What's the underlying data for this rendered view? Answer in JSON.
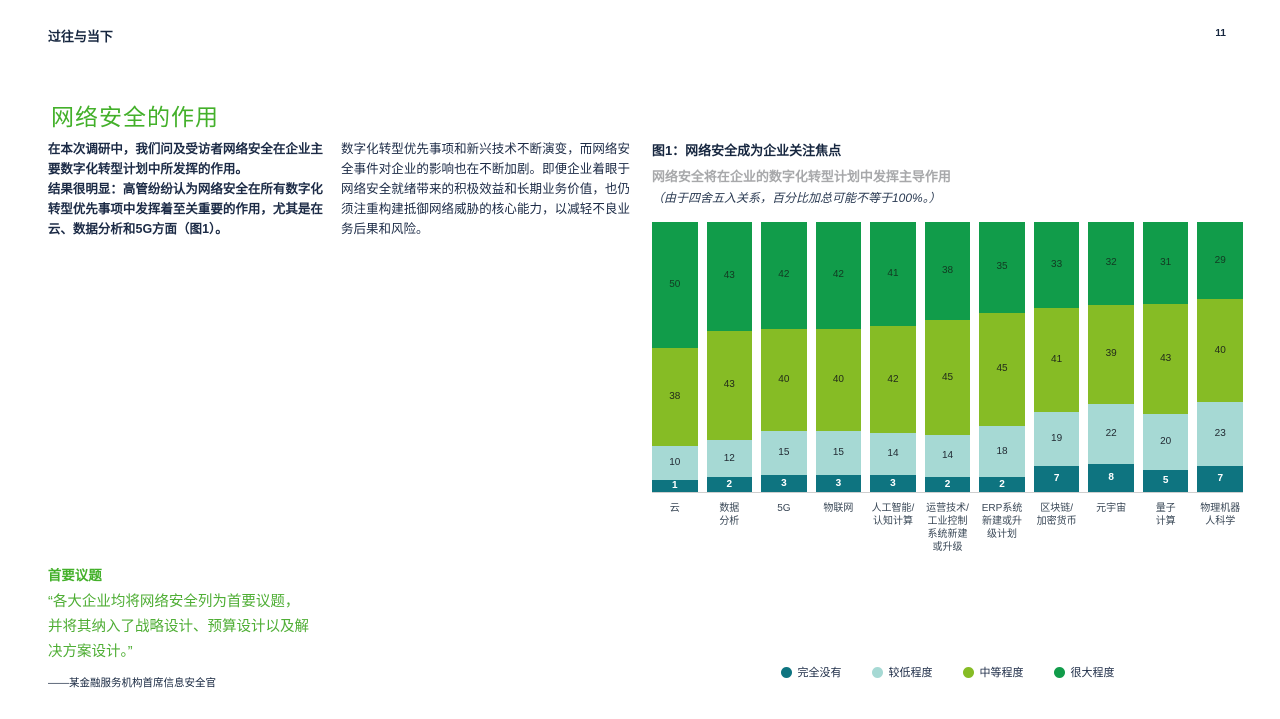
{
  "page": {
    "header": "过往与当下",
    "page_number": "11"
  },
  "article": {
    "title": "网络安全的作用",
    "col1_p1": "在本次调研中，我们问及受访者网络安全在企业主要数字化转型计划中所发挥的作用。",
    "col1_p2": "结果很明显：高管纷纷认为网络安全在所有数字化转型优先事项中发挥着至关重要的作用，尤其是在云、数据分析和5G方面（图1）。",
    "col2_p1": "数字化转型优先事项和新兴技术不断演变，而网络安全事件对企业的影响也在不断加剧。即便企业着眼于网络安全就绪带来的积极效益和长期业务价值，也仍须注重构建抵御网络威胁的核心能力，以减轻不良业务后果和风险。"
  },
  "figure": {
    "title": "图1：网络安全成为企业关注焦点",
    "subtitle": "网络安全将在企业的数字化转型计划中发挥主导作用",
    "note": "（由于四舍五入关系，百分比加总可能不等于100%。）"
  },
  "chart_data": {
    "type": "bar",
    "stacked": true,
    "units": "percent",
    "ylim": [
      0,
      100
    ],
    "grid": false,
    "legend_position": "bottom",
    "title": "图1：网络安全成为企业关注焦点",
    "subtitle": "网络安全将在企业的数字化转型计划中发挥主导作用",
    "categories": [
      "云",
      "数据分析",
      "5G",
      "物联网",
      "人工智能/认知计算",
      "运营技术/工业控制系统新建或升级",
      "ERP系统新建或升级计划",
      "区块链/加密货币",
      "元宇宙",
      "量子计算",
      "物理机器人科学"
    ],
    "display_labels": [
      "云",
      "数据\n分析",
      "5G",
      "物联网",
      "人工智能/\n认知计算",
      "运营技术/\n工业控制\n系统新建\n或升级",
      "ERP系统\n新建或升\n级计划",
      "区块链/\n加密货币",
      "元宇宙",
      "量子\n计算",
      "物理机器\n人科学"
    ],
    "series": [
      {
        "name": "完全没有",
        "color": "#0e7480",
        "label_color": "#ffffff",
        "values": [
          1,
          2,
          3,
          3,
          3,
          2,
          2,
          7,
          8,
          5,
          7
        ]
      },
      {
        "name": "较低程度",
        "color": "#a6d9d4",
        "label_color": "#222b33",
        "values": [
          10,
          12,
          15,
          15,
          14,
          14,
          18,
          19,
          22,
          20,
          23
        ]
      },
      {
        "name": "中等程度",
        "color": "#86bc25",
        "label_color": "#222b1a",
        "values": [
          38,
          43,
          40,
          40,
          42,
          45,
          45,
          41,
          39,
          43,
          40
        ]
      },
      {
        "name": "很大程度",
        "color": "#119c4a",
        "label_color": "#123a22",
        "values": [
          50,
          43,
          42,
          42,
          41,
          38,
          35,
          33,
          32,
          31,
          29
        ]
      }
    ]
  },
  "quote": {
    "heading": "首要议题",
    "text": "“各大企业均将网络安全列为首要议题，并将其纳入了战略设计、预算设计以及解决方案设计。”",
    "attribution": "——某金融服务机构首席信息安全官"
  }
}
